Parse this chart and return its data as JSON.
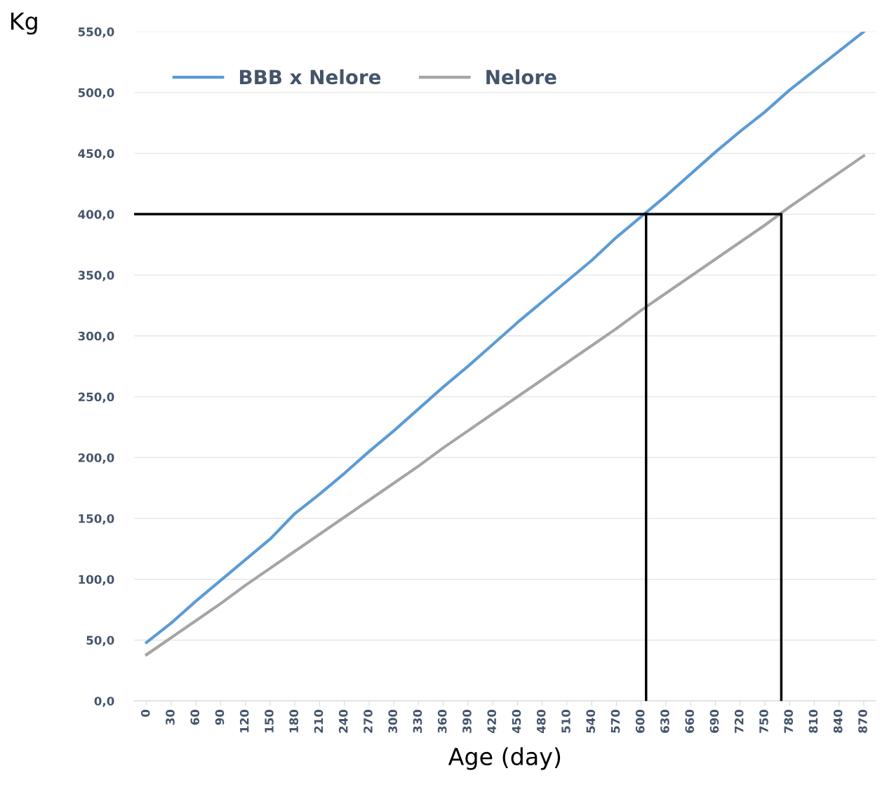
{
  "chart_data": {
    "type": "line",
    "xlabel": "Age (day)",
    "ylabel": "Kg",
    "x": [
      0,
      30,
      60,
      90,
      120,
      150,
      180,
      210,
      240,
      270,
      300,
      330,
      360,
      390,
      420,
      450,
      480,
      510,
      540,
      570,
      600,
      630,
      660,
      690,
      720,
      750,
      780,
      810,
      840,
      870
    ],
    "series": [
      {
        "name": "BBB x Nelore",
        "color": "#5b9bd5",
        "values": [
          48,
          64,
          82,
          99,
          116,
          133,
          154,
          170,
          187,
          205,
          222,
          240,
          258,
          275,
          293,
          311,
          328,
          345,
          362,
          381,
          398,
          415,
          433,
          451,
          468,
          484,
          502,
          518,
          534,
          550
        ]
      },
      {
        "name": "Nelore",
        "color": "#a5a5a5",
        "values": [
          38,
          52,
          66,
          80,
          95,
          109,
          123,
          137,
          151,
          165,
          179,
          193,
          208,
          222,
          236,
          250,
          264,
          278,
          292,
          306,
          321,
          335,
          349,
          363,
          377,
          391,
          406,
          420,
          434,
          448
        ]
      },
      {
        "color": "#000000",
        "x": [
          -15,
          770,
          770
        ],
        "values": [
          400,
          400,
          0
        ]
      },
      {
        "color": "#000000",
        "x": [
          606,
          606
        ],
        "values": [
          400,
          0
        ]
      }
    ],
    "xlim": [
      -15,
      885
    ],
    "ylim": [
      0,
      550
    ],
    "xticks": [
      0,
      30,
      60,
      90,
      120,
      150,
      180,
      210,
      240,
      270,
      300,
      330,
      360,
      390,
      420,
      450,
      480,
      510,
      540,
      570,
      600,
      630,
      660,
      690,
      720,
      750,
      780,
      810,
      840,
      870
    ],
    "yticks": [
      {
        "value": 0,
        "label": "0,0"
      },
      {
        "value": 50,
        "label": "50,0"
      },
      {
        "value": 100,
        "label": "100,0"
      },
      {
        "value": 150,
        "label": "150,0"
      },
      {
        "value": 200,
        "label": "200,0"
      },
      {
        "value": 250,
        "label": "250,0"
      },
      {
        "value": 300,
        "label": "300,0"
      },
      {
        "value": 350,
        "label": "350,0"
      },
      {
        "value": 400,
        "label": "400,0"
      },
      {
        "value": 450,
        "label": "450,0"
      },
      {
        "value": 500,
        "label": "500,0"
      },
      {
        "value": 550,
        "label": "550,0"
      }
    ],
    "grid": "y",
    "legend": "top left",
    "marker": "none",
    "line_style": "solid"
  }
}
